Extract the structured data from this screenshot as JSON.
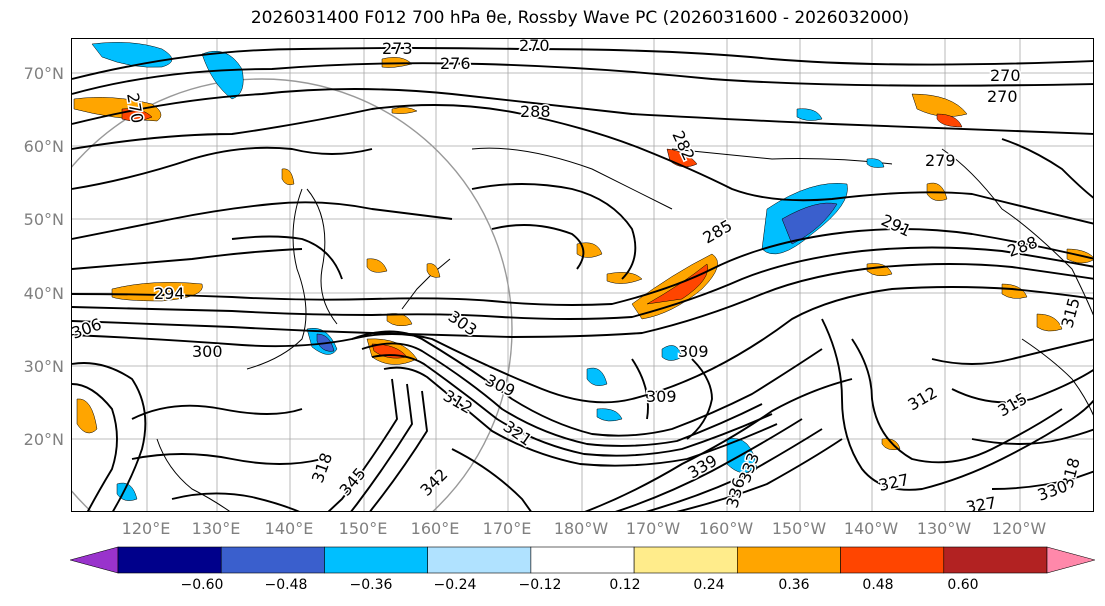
{
  "title": "2026031400 F012 700 hPa θe, Rossby Wave PC (2026031600 - 2026032000)",
  "latitude_labels": [
    "70°N",
    "60°N",
    "50°N",
    "40°N",
    "30°N",
    "20°N"
  ],
  "longitude_labels": [
    "120°E",
    "130°E",
    "140°E",
    "150°E",
    "160°E",
    "170°E",
    "180°W",
    "170°W",
    "160°W",
    "150°W",
    "140°W",
    "130°W",
    "120°W"
  ],
  "contour_labels": [
    "270",
    "273",
    "270",
    "276",
    "270",
    "270",
    "288",
    "282",
    "279",
    "285",
    "291",
    "288",
    "294",
    "306",
    "303",
    "300",
    "309",
    "309",
    "309",
    "312",
    "312",
    "315",
    "315",
    "318",
    "321",
    "327",
    "327",
    "330",
    "333",
    "336",
    "339",
    "342",
    "345",
    "318"
  ],
  "colorbar": {
    "ticks": [
      "−0.60",
      "−0.48",
      "−0.36",
      "−0.24",
      "−0.12",
      "0.12",
      "0.24",
      "0.36",
      "0.48",
      "0.60"
    ],
    "colors": [
      "#9933cc",
      "#00008b",
      "#3a5fcd",
      "#00bfff",
      "#b0e2ff",
      "#ffffff",
      "#ffec8b",
      "#ffa500",
      "#ff4500",
      "#b22222",
      "#ff88aa"
    ]
  },
  "anomaly_colors": {
    "positive_weak": "#ffec8b",
    "positive_mid": "#ffa500",
    "positive_strong": "#ff4500",
    "negative_weak": "#b0e2ff",
    "negative_mid": "#00bfff",
    "negative_strong": "#3a5fcd"
  }
}
